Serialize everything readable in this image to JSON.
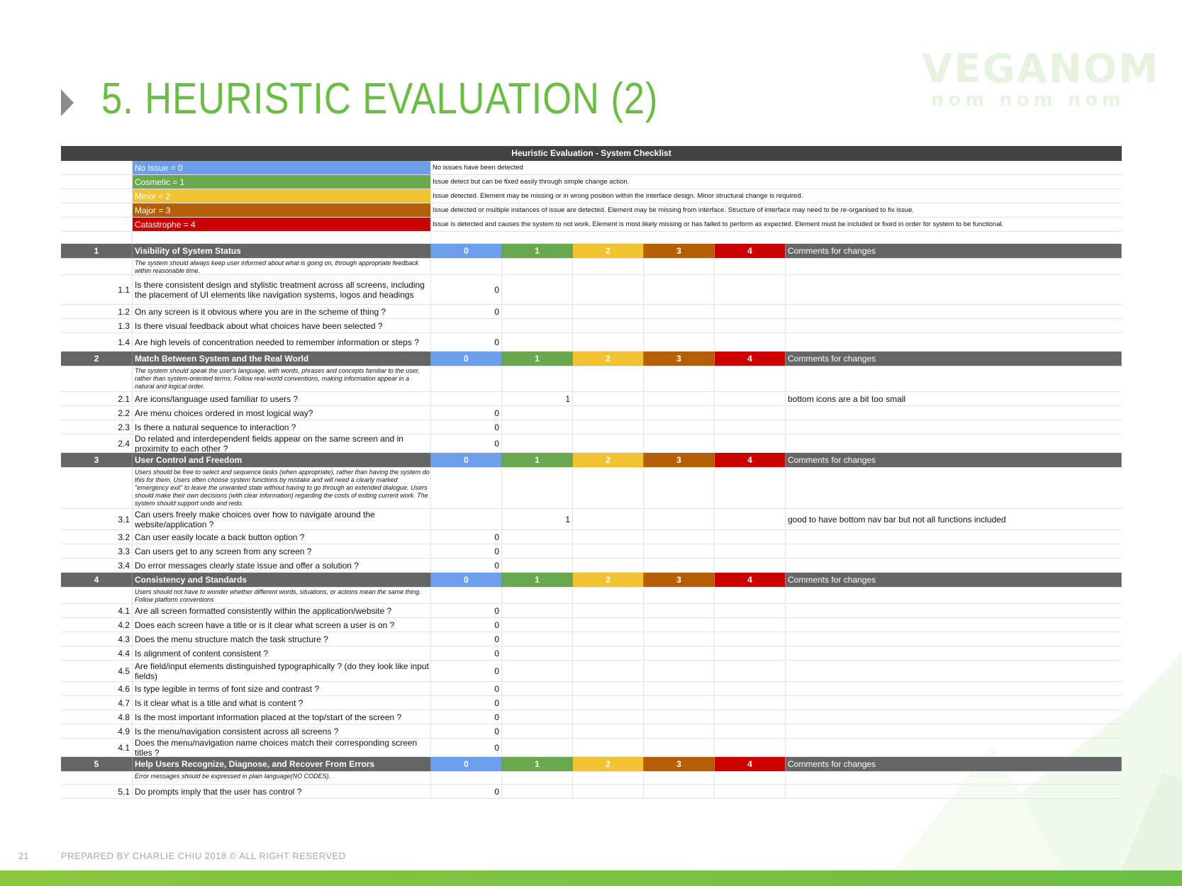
{
  "title": "5. HEURISTIC EVALUATION (2)",
  "logo": {
    "main": "VEGANOM",
    "sub": "nom nom nom"
  },
  "sheet": {
    "header": "Heuristic Evaluation - System Checklist",
    "legend": [
      {
        "label": "No Issue = 0",
        "desc": "No issues have been detected",
        "color": "#6d9eeb"
      },
      {
        "label": "Cosmetic = 1",
        "desc": "Issue detect but can be fixed easily through simple change action.",
        "color": "#6aa84f"
      },
      {
        "label": "Minor = 2",
        "desc": "Issue detected. Element may be missing or in wrong position within the interface design. Minor structural change is required.",
        "color": "#f1c232"
      },
      {
        "label": "Major = 3",
        "desc": "Issue detected or multiple instances of issue are detected. Element may be missing from interface. Structure of interface may need to be re-organised to fix issue.",
        "color": "#b45f06"
      },
      {
        "label": "Catastrophe = 4",
        "desc": "Issue is detected and causes the system to not work. Element is most likely missing or has failed to perform as expected. Element must be included or fixed in order for system to be functional.",
        "color": "#cc0000"
      }
    ],
    "score_headers": [
      "0",
      "1",
      "2",
      "3",
      "4"
    ],
    "comments_header": "Comments for changes",
    "sections": [
      {
        "num": "1",
        "title": "Visibility of System Status",
        "desc": "The system should always keep user informed about what is going on, through appropriate feedback within reasonable time.",
        "items": [
          {
            "num": "1.1",
            "q": "Is there consistent design and stylistic treatment across all screens, including the placement of UI elements like navigation systems, logos and headings",
            "s0": "0",
            "s1": "",
            "comment": ""
          },
          {
            "num": "1.2",
            "q": "On any screen is it obvious where you are in the scheme of thing ?",
            "s0": "0",
            "s1": "",
            "comment": ""
          },
          {
            "num": "1.3",
            "q": "Is there visual feedback about what choices have been selected ?",
            "s0": "",
            "s1": "",
            "comment": ""
          },
          {
            "num": "1.4",
            "q": "Are high levels of concentration needed to remember information or steps ?",
            "s0": "0",
            "s1": "",
            "comment": ""
          }
        ]
      },
      {
        "num": "2",
        "title": "Match Between System and the Real World",
        "desc": "The system should speak the user's language, with words, phrases and concepts familiar to the user, rather than system-oriented terms. Follow real-world conventions, making information appear in a natural and logical order.",
        "items": [
          {
            "num": "2.1",
            "q": "Are icons/language used familiar to users ?",
            "s0": "",
            "s1": "1",
            "comment": "bottom icons are a bit too small"
          },
          {
            "num": "2.2",
            "q": "Are menu choices ordered in most logical way?",
            "s0": "0",
            "s1": "",
            "comment": ""
          },
          {
            "num": "2.3",
            "q": "Is there a natural sequence to interaction ?",
            "s0": "0",
            "s1": "",
            "comment": ""
          },
          {
            "num": "2.4",
            "q": "Do related and interdependent fields appear on the same screen and in proximity to each other ?",
            "s0": "0",
            "s1": "",
            "comment": ""
          }
        ]
      },
      {
        "num": "3",
        "title": "User Control and Freedom",
        "desc": "Users should be free to select and sequence tasks (when appropriate), rather than having the system do this for them. Users often choose system functions by mistake and will need a clearly marked \"emergency exit\" to leave the unwanted state without having to go through an extended dialogue. Users should make their own decisions (with clear information) regarding the costs of exiting current work. The system should support undo and redo.",
        "items": [
          {
            "num": "3.1",
            "q": "Can users freely make choices over how to navigate around the website/application ?",
            "s0": "",
            "s1": "1",
            "comment": "good to have bottom nav bar but not all functions included"
          },
          {
            "num": "3.2",
            "q": "Can user easily locate a back button option ?",
            "s0": "0",
            "s1": "",
            "comment": ""
          },
          {
            "num": "3.3",
            "q": "Can users get to any screen from any screen ?",
            "s0": "0",
            "s1": "",
            "comment": ""
          },
          {
            "num": "3.4",
            "q": "Do error messages clearly state issue and offer a solution ?",
            "s0": "0",
            "s1": "",
            "comment": ""
          }
        ]
      },
      {
        "num": "4",
        "title": "Consistency and Standards",
        "desc": "Users should not have to wonder whether different words, situations, or actions mean the same thing. Follow platform conventions",
        "items": [
          {
            "num": "4.1",
            "q": "Are all screen formatted consistently within the application/website ?",
            "s0": "0",
            "s1": "",
            "comment": ""
          },
          {
            "num": "4.2",
            "q": "Does each screen have a title or is it clear what screen a user is on ?",
            "s0": "0",
            "s1": "",
            "comment": ""
          },
          {
            "num": "4.3",
            "q": "Does the menu structure match the task structure ?",
            "s0": "0",
            "s1": "",
            "comment": ""
          },
          {
            "num": "4.4",
            "q": "Is alignment of content consistent ?",
            "s0": "0",
            "s1": "",
            "comment": ""
          },
          {
            "num": "4.5",
            "q": "Are field/input elements distinguished typographically ? (do they look like input fields)",
            "s0": "0",
            "s1": "",
            "comment": ""
          },
          {
            "num": "4.6",
            "q": "Is type legible in terms of font size and contrast ?",
            "s0": "0",
            "s1": "",
            "comment": ""
          },
          {
            "num": "4.7",
            "q": "Is it clear what is a title and what is content ?",
            "s0": "0",
            "s1": "",
            "comment": ""
          },
          {
            "num": "4.8",
            "q": "Is the most important information placed at the top/start of the screen ?",
            "s0": "0",
            "s1": "",
            "comment": ""
          },
          {
            "num": "4.9",
            "q": "Is the menu/navigation consistent across all screens ?",
            "s0": "0",
            "s1": "",
            "comment": ""
          },
          {
            "num": "4.1",
            "q": "Does the menu/navigation name choices match their corresponding screen titles ?",
            "s0": "0",
            "s1": "",
            "comment": ""
          }
        ]
      },
      {
        "num": "5",
        "title": "Help Users Recognize, Diagnose, and Recover From Errors",
        "desc": "Error messages should be expressed in plain language(NO CODES).",
        "items": [
          {
            "num": "5.1",
            "q": "Do prompts imply that the user has control ?",
            "s0": "0",
            "s1": "",
            "comment": ""
          }
        ]
      }
    ]
  },
  "footer": {
    "page_num": "21",
    "text": "PREPARED BY CHARLIE CHIU 2018 © ALL RIGHT RESERVED"
  },
  "theme": {
    "accent": "#6cbd45",
    "header_dark": "#434343",
    "section_gray": "#666666"
  }
}
